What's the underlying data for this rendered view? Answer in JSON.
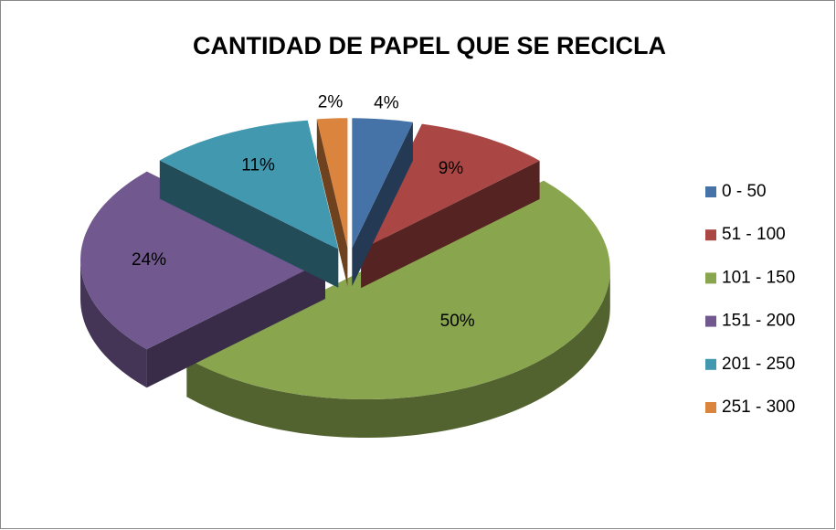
{
  "chart_data": {
    "type": "pie3d",
    "title": "CANTIDAD DE PAPEL QUE SE RECICLA",
    "categories": [
      "0 - 50",
      "51 - 100",
      "101 - 150",
      "151 - 200",
      "201 - 250",
      "251 - 300"
    ],
    "values": [
      4,
      9,
      50,
      24,
      11,
      2
    ],
    "value_labels": [
      "4%",
      "9%",
      "50%",
      "24%",
      "11%",
      "2%"
    ],
    "colors": [
      "#4572a7",
      "#aa4643",
      "#89a54e",
      "#71588f",
      "#4198af",
      "#db843d"
    ],
    "legend": "right"
  }
}
